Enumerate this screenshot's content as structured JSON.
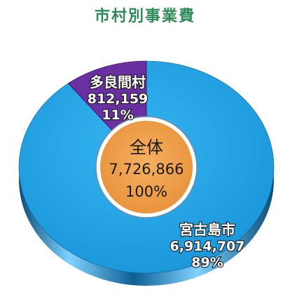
{
  "colors": {
    "title": "#2e8b57",
    "slice_main": "#1fa4e6",
    "slice_main_dark": "#0e5f93",
    "slice_small": "#6a2fa0",
    "slice_small_dark": "#3e1566",
    "center": "#f0a04b",
    "center_border": "#6e8fa8",
    "label_fill": "#ffffff",
    "label_stroke": "#1a1a1a"
  },
  "chart_data": {
    "type": "pie",
    "title": "市村別事業費",
    "center": {
      "label": "全体",
      "value": "7,726,866",
      "percent": "100%",
      "total": 7726866
    },
    "slices": [
      {
        "name": "宮古島市",
        "value": 6914707,
        "value_text": "6,914,707",
        "percent": "89%",
        "percent_value": 89
      },
      {
        "name": "多良間村",
        "value": 812159,
        "value_text": "812,159",
        "percent": "11%",
        "percent_value": 11
      }
    ]
  }
}
